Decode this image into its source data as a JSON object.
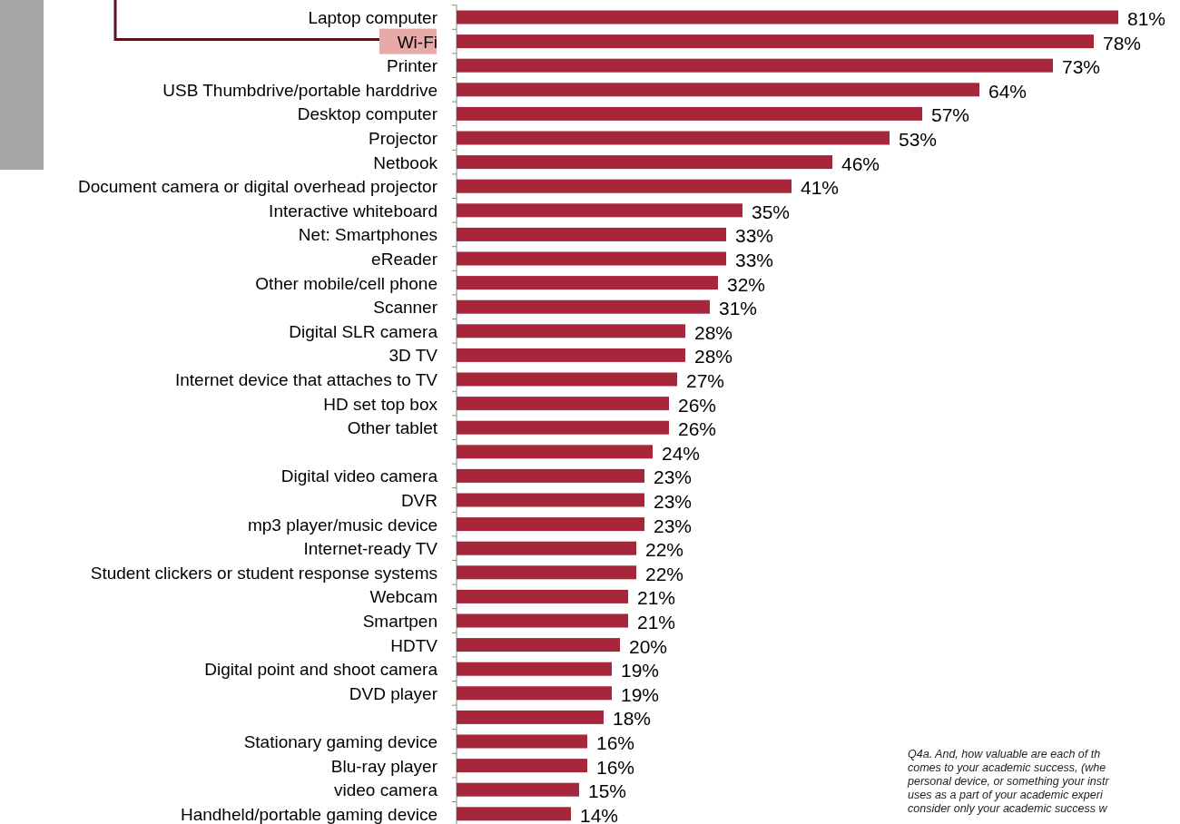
{
  "chart_data": {
    "type": "bar",
    "orientation": "horizontal",
    "categories": [
      "Laptop computer",
      "Wi-Fi",
      "Printer",
      "USB Thumbdrive/portable harddrive",
      "Desktop computer",
      "Projector",
      "Netbook",
      "Document camera or digital overhead projector",
      "Interactive whiteboard",
      "Net: Smartphones",
      "eReader",
      "Other mobile/cell phone",
      "Scanner",
      "Digital SLR camera",
      "3D TV",
      "Internet device that attaches to TV",
      "HD set top box",
      "Other tablet",
      null,
      "Digital video camera",
      "DVR",
      "mp3 player/music device",
      "Internet-ready TV",
      "Student clickers or student response systems",
      "Webcam",
      "Smartpen",
      "HDTV",
      "Digital point and shoot camera",
      "DVD player",
      null,
      "Stationary gaming device",
      "Blu-ray player",
      "video camera",
      "Handheld/portable gaming device"
    ],
    "values": [
      81,
      78,
      73,
      64,
      57,
      53,
      46,
      41,
      35,
      33,
      33,
      32,
      31,
      28,
      28,
      27,
      26,
      26,
      24,
      23,
      23,
      23,
      22,
      22,
      21,
      21,
      20,
      19,
      19,
      18,
      16,
      16,
      15,
      14
    ],
    "value_labels": [
      "81%",
      "78%",
      "73%",
      "64%",
      "57%",
      "53%",
      "46%",
      "41%",
      "35%",
      "33%",
      "33%",
      "32%",
      "31%",
      "28%",
      "28%",
      "27%",
      "26%",
      "26%",
      "24%",
      "23%",
      "23%",
      "23%",
      "22%",
      "22%",
      "21%",
      "21%",
      "20%",
      "19%",
      "19%",
      "18%",
      "16%",
      "16%",
      "15%",
      "14%"
    ],
    "color": "#a6273b",
    "annotations": [
      "Q4a. And, how valuable are each of th\ncomes to your academic success, (whe\npersonal device, or something your instr\nuses as a part of your academic experi\nconsider only your academic success w"
    ]
  }
}
